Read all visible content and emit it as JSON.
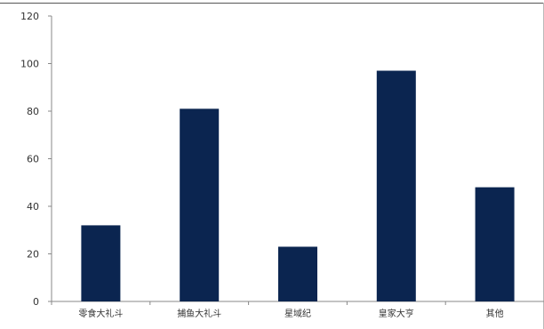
{
  "chart_data": {
    "type": "bar",
    "categories": [
      "零食大礼斗",
      "捕鱼大礼斗",
      "星域纪",
      "皇家大亨",
      "其他"
    ],
    "values": [
      32,
      81,
      23,
      97,
      48
    ],
    "title": "",
    "xlabel": "",
    "ylabel": "",
    "ylim": [
      0,
      120
    ],
    "yticks": [
      0,
      20,
      40,
      60,
      80,
      100,
      120
    ],
    "grid": false,
    "legend": "none",
    "colors": {
      "bar": "#0b2550",
      "axis": "#888888",
      "tick_text": "#333333"
    }
  }
}
